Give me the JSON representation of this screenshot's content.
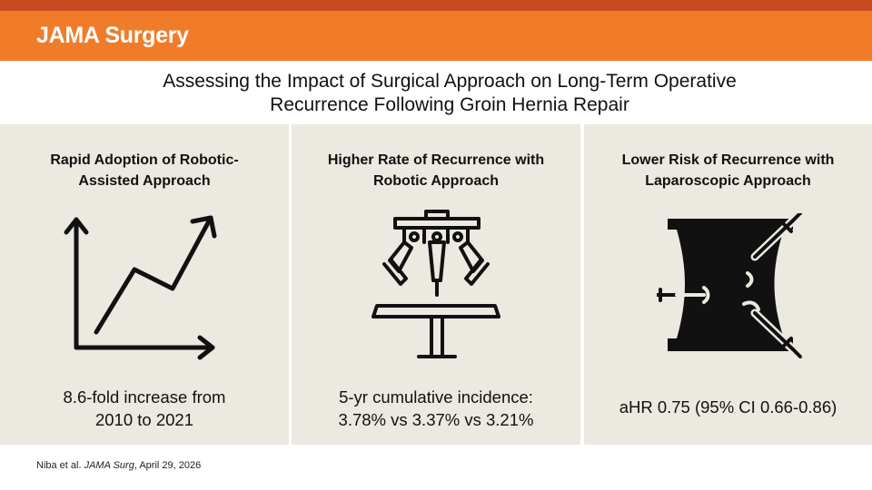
{
  "header": {
    "journal": "JAMA Surgery"
  },
  "title": {
    "line1": "Assessing the Impact of Surgical Approach on Long-Term Operative",
    "line2": "Recurrence Following Groin Hernia Repair"
  },
  "panels": [
    {
      "title_line1": "Rapid Adoption of Robotic-",
      "title_line2": "Assisted Approach",
      "icon": "trend-line-chart-icon",
      "finding_line1": "8.6-fold increase from",
      "finding_line2": "2010 to 2021"
    },
    {
      "title_line1": "Higher Rate of Recurrence with",
      "title_line2": "Robotic Approach",
      "icon": "surgical-robot-icon",
      "finding_line1": "5-yr cumulative incidence:",
      "finding_line2": "3.78% vs 3.37% vs 3.21%"
    },
    {
      "title_line1": "Lower Risk of Recurrence with",
      "title_line2": "Laparoscopic Approach",
      "icon": "laparoscopic-abdomen-icon",
      "finding_line1": "aHR 0.75 (95% CI 0.66-0.86)"
    }
  ],
  "citation": {
    "authors": "Niba et al.",
    "journal": "JAMA Surg",
    "date": ", April 29, 2026"
  },
  "colors": {
    "banner": "#f07c2a",
    "banner_stripe": "#c94a22",
    "panel_background": "#ebe9e0",
    "icon": "#111111"
  }
}
